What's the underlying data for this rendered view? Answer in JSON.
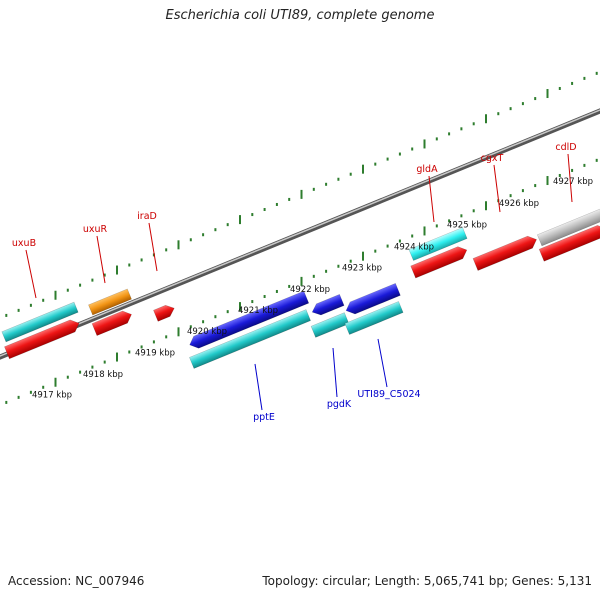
{
  "title": "Escherichia coli UTI89, complete genome",
  "footer": {
    "accession": "Accession: NC_007946",
    "info": "Topology: circular; Length: 5,065,741 bp; Genes: 5,131"
  },
  "colors": {
    "backbone": "#777777",
    "ticks": "#2e7d2e",
    "gene_red": "#e81010",
    "gene_cyan": "#1ec8c8",
    "gene_orange": "#f09010",
    "gene_blue": "#1a1ad8",
    "gene_grey": "#b8b8b8",
    "label_top": "#cc0000",
    "label_bottom": "#0000cc"
  },
  "scale": {
    "unit": "kbp",
    "lower_ticks": [
      "4917 kbp",
      "4918 kbp",
      "4919 kbp",
      "4920 kbp",
      "4921 kbp",
      "4922 kbp",
      "4923 kbp",
      "4924 kbp",
      "4925 kbp",
      "4926 kbp",
      "4927 kbp"
    ]
  },
  "genes_top_labels": [
    "uxuB",
    "uxuR",
    "iraD",
    "gldA",
    "cgxT",
    "cdlD"
  ],
  "genes_bottom_labels": [
    "pptE",
    "pgdK",
    "UTI89_C5024"
  ]
}
